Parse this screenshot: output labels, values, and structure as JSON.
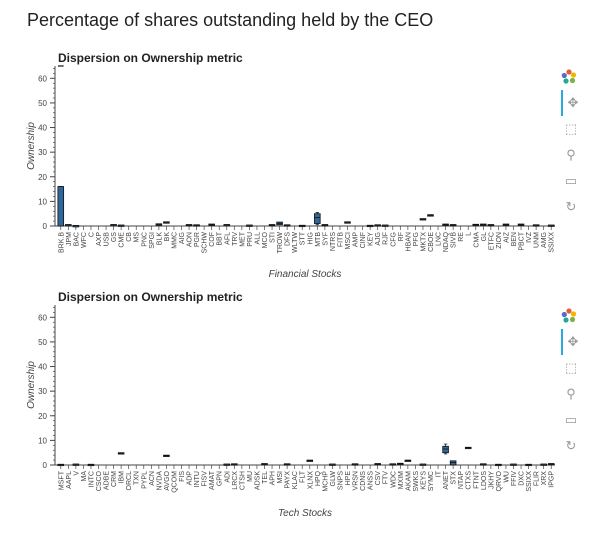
{
  "page_title": "Percentage of shares outstanding held by the CEO",
  "toolbar": {
    "icons": [
      "bokeh-logo-icon",
      "pan-icon",
      "box-zoom-icon",
      "wheel-zoom-icon",
      "save-icon",
      "reset-icon"
    ]
  },
  "chart_data": [
    {
      "type": "box",
      "title": "Dispersion on Ownership metric",
      "xlabel": "Financial Stocks",
      "ylabel": "Ownership",
      "ylim": [
        0,
        65
      ],
      "yticks": [
        0,
        10,
        20,
        30,
        40,
        50,
        60
      ],
      "color": "#30679a",
      "categories": [
        "BRK.B",
        "JPM",
        "BAC",
        "WFC",
        "C",
        "AXP",
        "USB",
        "GS",
        "CME",
        "CB",
        "MS",
        "PNC",
        "SPGI",
        "BLK",
        "BK",
        "MMC",
        "AIG",
        "AON",
        "PGR",
        "SCHW",
        "COF",
        "BBT",
        "AFL",
        "TRV",
        "MET",
        "PRU",
        "ALL",
        "MCO",
        "STI",
        "TROW",
        "DFS",
        "WLTW",
        "STT",
        "HIG",
        "MTB",
        "SYF",
        "NTRS",
        "FITB",
        "MSCI",
        "AMP",
        "CINF",
        "KEY",
        "AJG",
        "RJF",
        "CFG",
        "RF",
        "HBAN",
        "PFG",
        "MKTX",
        "CBOE",
        "LNC",
        "NDAQ",
        "SIVB",
        "RE",
        "L",
        "CMA",
        "GL",
        "ETFC",
        "ZION",
        "AIZ",
        "BEN",
        "PBCT",
        "IVZ",
        "UNM",
        "AMG",
        "SSIXX"
      ],
      "boxes": [
        {
          "x": "BRK.B",
          "q1": 0,
          "q3": 16,
          "median": 16,
          "whisker_low": 0,
          "whisker_high": 16,
          "outliers": [
            65
          ]
        },
        {
          "x": "JPM",
          "q1": 0.3,
          "q3": 0.6,
          "median": 0.5
        },
        {
          "x": "BAC",
          "q1": 0.1,
          "q3": 0.2,
          "median": 0.15
        },
        {
          "x": "GS",
          "q1": 0.3,
          "q3": 0.6,
          "median": 0.5
        },
        {
          "x": "CME",
          "q1": 0.2,
          "q3": 0.4,
          "median": 0.3
        },
        {
          "x": "BLK",
          "q1": 0.5,
          "q3": 0.9,
          "median": 0.7
        },
        {
          "x": "BK",
          "q1": 1.2,
          "q3": 1.7,
          "median": 1.5
        },
        {
          "x": "AON",
          "q1": 0.3,
          "q3": 0.6,
          "median": 0.4
        },
        {
          "x": "PGR",
          "q1": 0.2,
          "q3": 0.5,
          "median": 0.3
        },
        {
          "x": "COF",
          "q1": 0.4,
          "q3": 0.8,
          "median": 0.6
        },
        {
          "x": "AFL",
          "q1": 0.3,
          "q3": 0.6,
          "median": 0.5
        },
        {
          "x": "PRU",
          "q1": 0.2,
          "q3": 0.4,
          "median": 0.3
        },
        {
          "x": "STI",
          "q1": 0.3,
          "q3": 0.6,
          "median": 0.4
        },
        {
          "x": "TROW",
          "q1": 0.5,
          "q3": 1.6,
          "median": 1.0
        },
        {
          "x": "DFS",
          "q1": 0.2,
          "q3": 0.5,
          "median": 0.3
        },
        {
          "x": "STT",
          "q1": 0.1,
          "q3": 0.3,
          "median": 0.2
        },
        {
          "x": "MTB",
          "q1": 1.0,
          "q3": 5.0,
          "median": 3.5,
          "whisker_low": 0.5,
          "whisker_high": 5.5
        },
        {
          "x": "SYF",
          "q1": 0.3,
          "q3": 0.6,
          "median": 0.4
        },
        {
          "x": "MSCI",
          "q1": 1.3,
          "q3": 1.7,
          "median": 1.5
        },
        {
          "x": "KEY",
          "q1": 0.1,
          "q3": 0.3,
          "median": 0.2
        },
        {
          "x": "AJG",
          "q1": 0.2,
          "q3": 0.5,
          "median": 0.3
        },
        {
          "x": "RJF",
          "q1": 0.2,
          "q3": 0.4,
          "median": 0.3
        },
        {
          "x": "MKTX",
          "q1": 2.6,
          "q3": 3.0,
          "median": 2.8
        },
        {
          "x": "CBOE",
          "q1": 4.0,
          "q3": 4.6,
          "median": 4.3
        },
        {
          "x": "NDAQ",
          "q1": 0.4,
          "q3": 0.8,
          "median": 0.6
        },
        {
          "x": "SIVB",
          "q1": 0.3,
          "q3": 0.6,
          "median": 0.4
        },
        {
          "x": "CMA",
          "q1": 0.3,
          "q3": 0.7,
          "median": 0.5
        },
        {
          "x": "GL",
          "q1": 0.4,
          "q3": 0.8,
          "median": 0.6
        },
        {
          "x": "ETFC",
          "q1": 0.3,
          "q3": 0.6,
          "median": 0.4
        },
        {
          "x": "AIZ",
          "q1": 0.4,
          "q3": 0.8,
          "median": 0.6
        },
        {
          "x": "PBCT",
          "q1": 0.4,
          "q3": 0.8,
          "median": 0.6
        },
        {
          "x": "UNM",
          "q1": 0.2,
          "q3": 0.5,
          "median": 0.3
        },
        {
          "x": "SSIXX",
          "q1": 0.2,
          "q3": 0.4,
          "median": 0.3
        }
      ]
    },
    {
      "type": "box",
      "title": "Dispersion on Ownership metric",
      "xlabel": "Tech Stocks",
      "ylabel": "Ownership",
      "ylim": [
        0,
        65
      ],
      "yticks": [
        0,
        10,
        20,
        30,
        40,
        50,
        60
      ],
      "color": "#30679a",
      "categories": [
        "MSFT",
        "AAPL",
        "V",
        "MA",
        "INTC",
        "CSCO",
        "ADBE",
        "CRM",
        "IBM",
        "ORCL",
        "TXN",
        "PYPL",
        "ACN",
        "NVDA",
        "AVGO",
        "QCOM",
        "FIS",
        "ADP",
        "INTU",
        "FISV",
        "AMAT",
        "GPN",
        "ADI",
        "LRCX",
        "CTSH",
        "MU",
        "ADSK",
        "TEL",
        "APH",
        "MSI",
        "PAYX",
        "KLAC",
        "FLT",
        "XLNX",
        "HPQ",
        "MCHP",
        "GLW",
        "SNPS",
        "HPE",
        "VRSN",
        "CDNS",
        "ANSS",
        "CSV",
        "FTV",
        "WDC",
        "MXIM",
        "AKAM",
        "SWKS",
        "KEYS",
        "SYMC",
        "IT",
        "ANET",
        "STX",
        "NTAP",
        "CTXS",
        "FTNT",
        "LDOS",
        "JKHY",
        "QRVO",
        "WU",
        "FFIV",
        "DXC",
        "SSIXX",
        "FLIR",
        "XRX",
        "IPGP"
      ],
      "boxes": [
        {
          "x": "MSFT",
          "q1": 0.1,
          "q3": 0.3,
          "median": 0.2
        },
        {
          "x": "V",
          "q1": 0.2,
          "q3": 0.4,
          "median": 0.3
        },
        {
          "x": "INTC",
          "q1": 0.1,
          "q3": 0.3,
          "median": 0.2
        },
        {
          "x": "IBM",
          "q1": 4.5,
          "q3": 5.0,
          "median": 4.8
        },
        {
          "x": "AVGO",
          "q1": 3.6,
          "q3": 4.0,
          "median": 3.8
        },
        {
          "x": "ADI",
          "q1": 0.2,
          "q3": 0.4,
          "median": 0.3
        },
        {
          "x": "LRCX",
          "q1": 0.2,
          "q3": 0.5,
          "median": 0.3
        },
        {
          "x": "TEL",
          "q1": 0.3,
          "q3": 0.6,
          "median": 0.4
        },
        {
          "x": "PAYX",
          "q1": 0.2,
          "q3": 0.5,
          "median": 0.3
        },
        {
          "x": "XLNX",
          "q1": 1.5,
          "q3": 2.0,
          "median": 1.8
        },
        {
          "x": "GLW",
          "q1": 0.2,
          "q3": 0.4,
          "median": 0.3
        },
        {
          "x": "VRSN",
          "q1": 0.2,
          "q3": 0.5,
          "median": 0.3
        },
        {
          "x": "CSV",
          "q1": 0.3,
          "q3": 0.6,
          "median": 0.4
        },
        {
          "x": "WDC",
          "q1": 0.2,
          "q3": 0.5,
          "median": 0.3
        },
        {
          "x": "MXIM",
          "q1": 0.3,
          "q3": 0.7,
          "median": 0.5
        },
        {
          "x": "AKAM",
          "q1": 1.7,
          "q3": 2.0,
          "median": 1.8
        },
        {
          "x": "KEYS",
          "q1": 0.2,
          "q3": 0.4,
          "median": 0.3
        },
        {
          "x": "ANET",
          "q1": 5.0,
          "q3": 7.6,
          "median": 6.5,
          "whisker_low": 4.5,
          "whisker_high": 8.5
        },
        {
          "x": "STX",
          "q1": 0,
          "q3": 1.7,
          "median": 1.0
        },
        {
          "x": "CTXS",
          "q1": 6.8,
          "q3": 7.2,
          "median": 7.0
        },
        {
          "x": "LDOS",
          "q1": 0.2,
          "q3": 0.5,
          "median": 0.3
        },
        {
          "x": "QRVO",
          "q1": 0.1,
          "q3": 0.3,
          "median": 0.2
        },
        {
          "x": "FFIV",
          "q1": 0.2,
          "q3": 0.4,
          "median": 0.3
        },
        {
          "x": "SSIXX",
          "q1": 0.1,
          "q3": 0.3,
          "median": 0.2
        },
        {
          "x": "XRX",
          "q1": 0.2,
          "q3": 0.4,
          "median": 0.3
        },
        {
          "x": "IPGP",
          "q1": 0.3,
          "q3": 0.6,
          "median": 0.4
        }
      ]
    }
  ]
}
